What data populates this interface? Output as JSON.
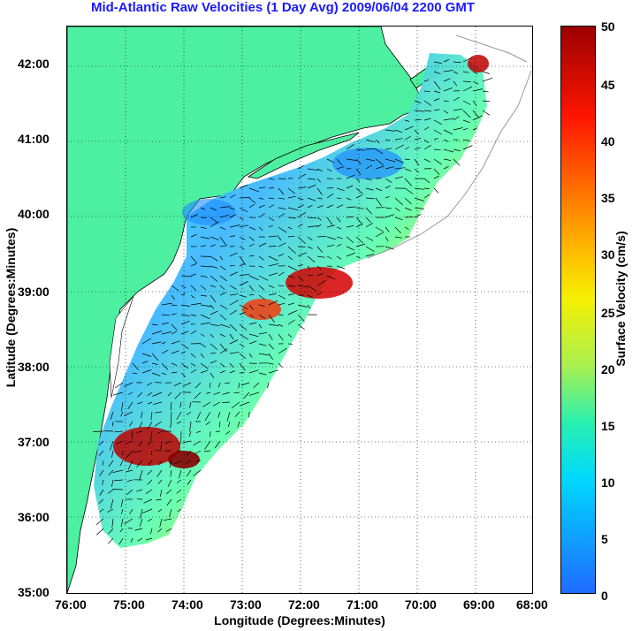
{
  "title": "Mid-Atlantic Raw Velocities (1 Day Avg) 2009/06/04 2200 GMT",
  "xlabel": "Longitude (Degrees:Minutes)",
  "ylabel": "Latitude (Degrees:Minutes)",
  "colorbar": {
    "label": "Surface Velocity (cm/s)",
    "ticks": [
      "0",
      "5",
      "10",
      "15",
      "20",
      "25",
      "30",
      "35",
      "40",
      "45",
      "50"
    ],
    "range": [
      0,
      50
    ]
  },
  "x_ticks": [
    "76:00",
    "75:00",
    "74:00",
    "73:00",
    "72:00",
    "71:00",
    "70:00",
    "69:00",
    "68:00"
  ],
  "y_ticks": [
    "35:00",
    "36:00",
    "37:00",
    "38:00",
    "39:00",
    "40:00",
    "41:00",
    "42:00"
  ],
  "colors": {
    "land": "#4df0a0",
    "title": "#1a1aff",
    "low": "#1f6bff",
    "high": "#9a0000"
  }
}
